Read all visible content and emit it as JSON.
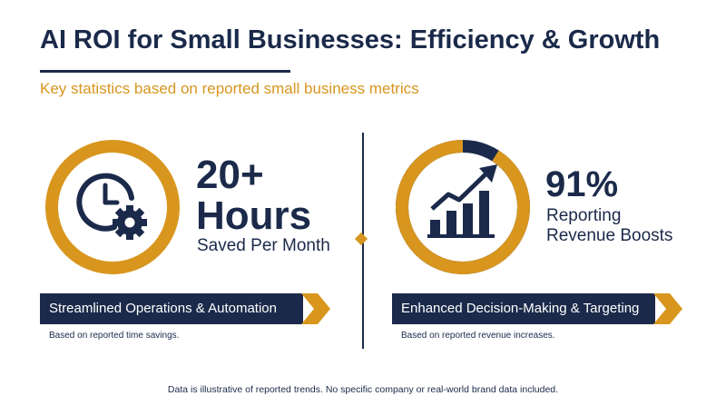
{
  "header": {
    "title": "AI ROI for Small Businesses: Efficiency & Growth",
    "subtitle": "Key statistics based on reported small business metrics"
  },
  "colors": {
    "navy": "#1b2a4a",
    "gold": "#d8961e"
  },
  "left_card": {
    "icon": "clock-gear-icon",
    "stat_value": "20+",
    "stat_unit": "Hours",
    "stat_caption": "Saved Per Month",
    "banner_label": "Streamlined Operations & Automation",
    "note": "Based on reported time savings."
  },
  "right_card": {
    "icon": "rising-bar-chart-icon",
    "stat_value": "91%",
    "stat_caption_line1": "Reporting",
    "stat_caption_line2": "Revenue Boosts",
    "ring_fill_fraction": 0.91,
    "banner_label": "Enhanced Decision-Making & Targeting",
    "note": "Based on reported revenue increases."
  },
  "footer": {
    "disclaimer": "Data is illustrative of reported trends. No specific company or real-world brand data included."
  }
}
